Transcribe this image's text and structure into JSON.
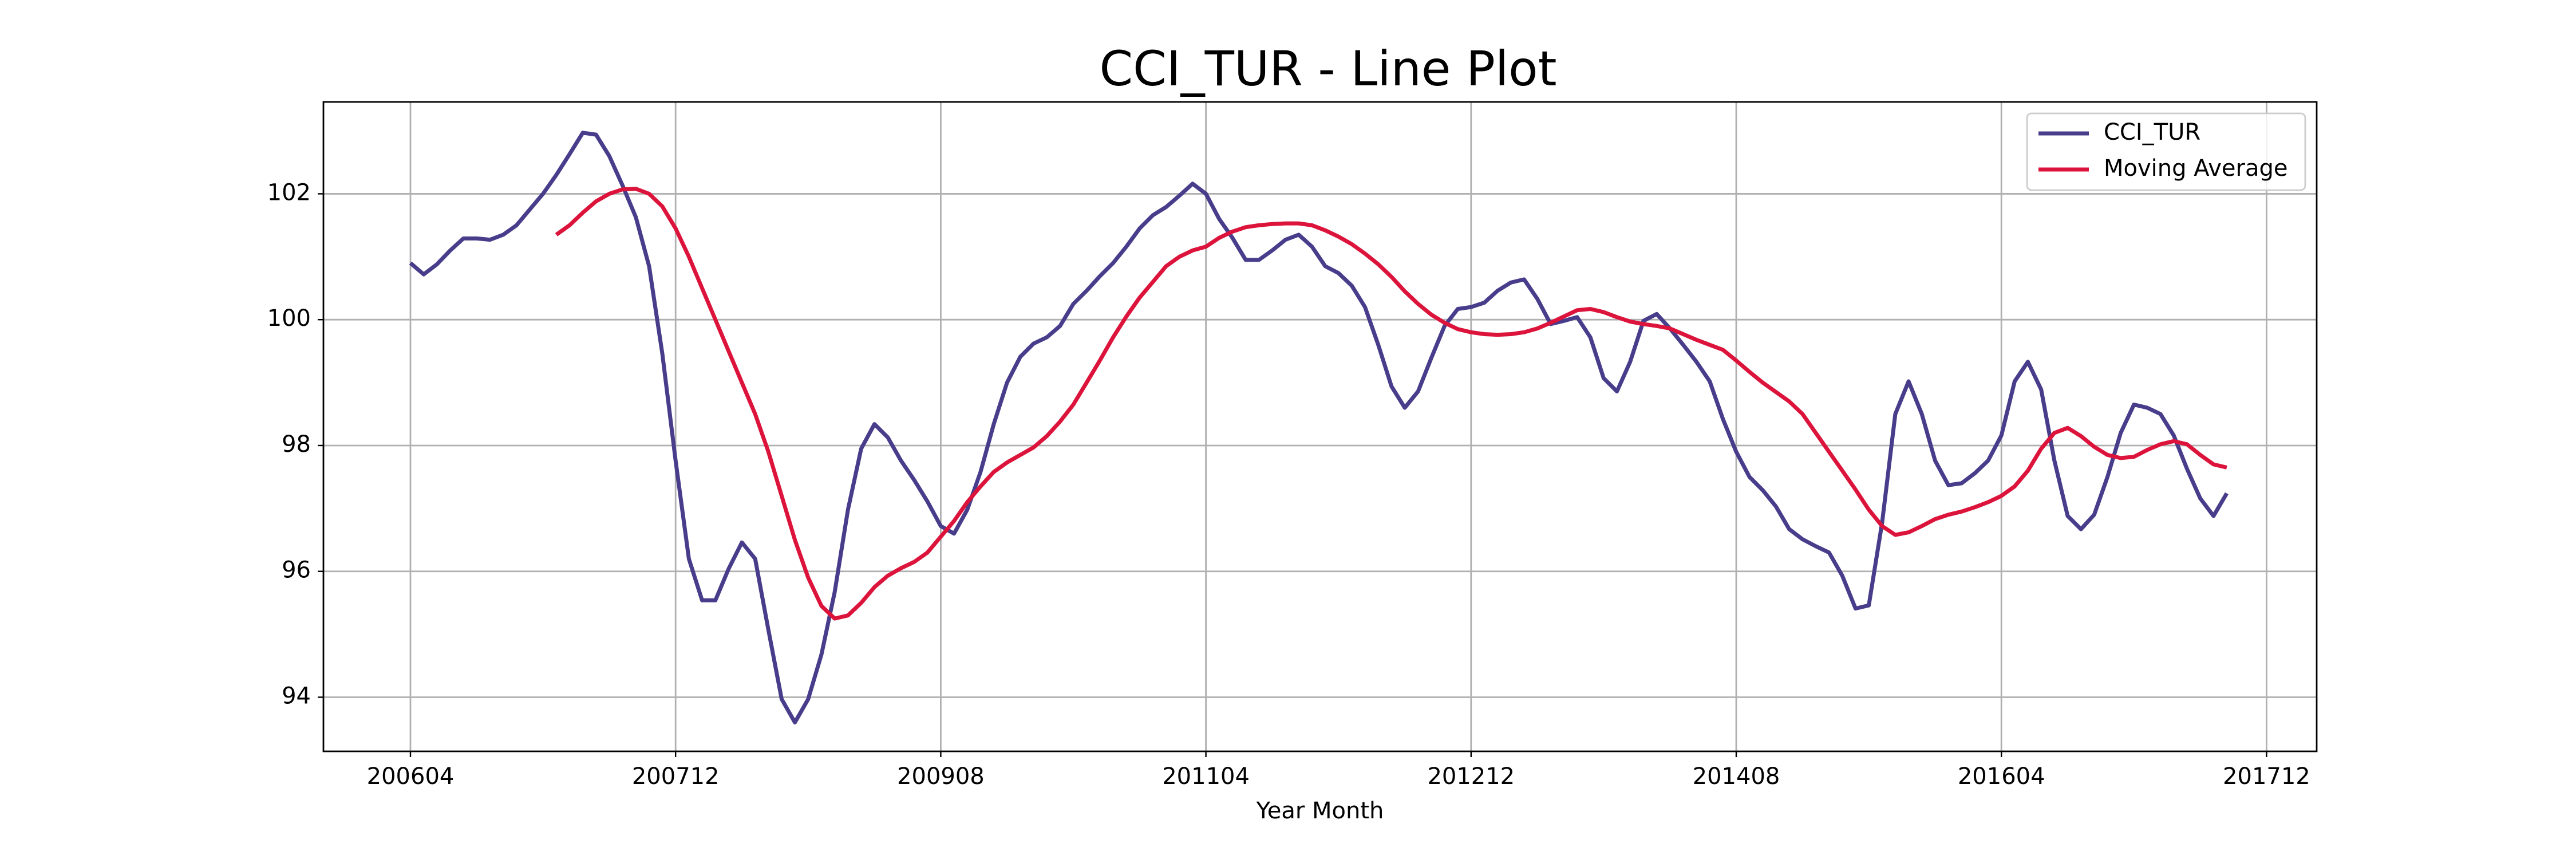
{
  "chart_data": {
    "type": "line",
    "title": "CCI_TUR - Line Plot",
    "x_label": "Year Month",
    "categories": [
      "200604",
      null,
      null,
      null,
      null,
      null,
      null,
      null,
      null,
      null,
      null,
      null,
      null,
      null,
      null,
      null,
      null,
      null,
      null,
      null,
      "200712",
      null,
      null,
      null,
      null,
      null,
      null,
      null,
      null,
      null,
      null,
      null,
      null,
      null,
      null,
      null,
      null,
      null,
      null,
      null,
      "200908",
      null,
      null,
      null,
      null,
      null,
      null,
      null,
      null,
      null,
      null,
      null,
      null,
      null,
      null,
      null,
      null,
      null,
      null,
      null,
      "201104",
      null,
      null,
      null,
      null,
      null,
      null,
      null,
      null,
      null,
      null,
      null,
      null,
      null,
      null,
      null,
      null,
      null,
      null,
      null,
      "201212",
      null,
      null,
      null,
      null,
      null,
      null,
      null,
      null,
      null,
      null,
      null,
      null,
      null,
      null,
      null,
      null,
      null,
      null,
      null,
      "201408",
      null,
      null,
      null,
      null,
      null,
      null,
      null,
      null,
      null,
      null,
      null,
      null,
      null,
      null,
      null,
      null,
      null,
      null,
      null,
      "201604",
      null,
      null,
      null,
      null,
      null,
      null,
      null,
      null,
      null,
      null,
      null,
      null,
      null,
      null,
      null,
      null,
      null,
      null,
      null,
      "201712"
    ],
    "series": [
      {
        "name": "CCI_TUR",
        "color": "#483d8b",
        "values": [
          100.9,
          100.72,
          100.88,
          101.1,
          101.29,
          101.29,
          101.27,
          101.35,
          101.5,
          101.75,
          102.0,
          102.3,
          102.63,
          102.97,
          102.94,
          102.6,
          102.13,
          101.63,
          100.85,
          99.46,
          97.76,
          96.2,
          95.54,
          95.54,
          96.04,
          96.46,
          96.2,
          95.07,
          93.97,
          93.6,
          93.97,
          94.68,
          95.67,
          96.98,
          97.95,
          98.34,
          98.13,
          97.76,
          97.45,
          97.11,
          96.72,
          96.6,
          96.98,
          97.58,
          98.34,
          99.0,
          99.41,
          99.62,
          99.72,
          99.9,
          100.25,
          100.46,
          100.69,
          100.9,
          101.16,
          101.45,
          101.66,
          101.79,
          101.97,
          102.16,
          102.0,
          101.6,
          101.3,
          100.95,
          100.95,
          101.1,
          101.27,
          101.35,
          101.16,
          100.85,
          100.74,
          100.54,
          100.2,
          99.6,
          98.94,
          98.6,
          98.86,
          99.39,
          99.9,
          100.17,
          100.2,
          100.27,
          100.46,
          100.59,
          100.64,
          100.33,
          99.93,
          99.98,
          100.04,
          99.72,
          99.07,
          98.86,
          99.33,
          99.98,
          100.09,
          99.86,
          99.6,
          99.33,
          99.02,
          98.42,
          97.9,
          97.5,
          97.29,
          97.03,
          96.67,
          96.51,
          96.4,
          96.3,
          95.93,
          95.41,
          95.46,
          96.77,
          98.5,
          99.02,
          98.5,
          97.76,
          97.37,
          97.4,
          97.56,
          97.76,
          98.16,
          99.02,
          99.33,
          98.89,
          97.76,
          96.88,
          96.67,
          96.9,
          97.5,
          98.2,
          98.65,
          98.6,
          98.5,
          98.16,
          97.63,
          97.16,
          96.88,
          97.24,
          null,
          null,
          null
        ]
      },
      {
        "name": "Moving Average",
        "color": "#dc143c",
        "values": [
          null,
          null,
          null,
          null,
          null,
          null,
          null,
          null,
          null,
          null,
          null,
          101.35,
          101.5,
          101.7,
          101.88,
          102.0,
          102.07,
          102.08,
          102.0,
          101.8,
          101.45,
          101.0,
          100.5,
          100.0,
          99.5,
          99.0,
          98.5,
          97.9,
          97.2,
          96.5,
          95.9,
          95.45,
          95.25,
          95.3,
          95.5,
          95.75,
          95.93,
          96.05,
          96.15,
          96.3,
          96.55,
          96.8,
          97.1,
          97.35,
          97.58,
          97.73,
          97.85,
          97.97,
          98.15,
          98.38,
          98.65,
          99.0,
          99.35,
          99.72,
          100.05,
          100.35,
          100.6,
          100.85,
          101.0,
          101.1,
          101.16,
          101.3,
          101.4,
          101.47,
          101.5,
          101.52,
          101.53,
          101.53,
          101.5,
          101.42,
          101.32,
          101.2,
          101.05,
          100.88,
          100.68,
          100.45,
          100.25,
          100.08,
          99.95,
          99.85,
          99.8,
          99.77,
          99.76,
          99.77,
          99.8,
          99.86,
          99.95,
          100.05,
          100.15,
          100.17,
          100.12,
          100.04,
          99.97,
          99.93,
          99.9,
          99.86,
          99.77,
          99.68,
          99.6,
          99.52,
          99.35,
          99.17,
          99.0,
          98.85,
          98.7,
          98.5,
          98.2,
          97.9,
          97.6,
          97.3,
          96.98,
          96.72,
          96.58,
          96.62,
          96.72,
          96.83,
          96.9,
          96.95,
          97.02,
          97.1,
          97.2,
          97.35,
          97.6,
          97.95,
          98.2,
          98.28,
          98.15,
          97.98,
          97.85,
          97.8,
          97.82,
          97.93,
          98.02,
          98.07,
          98.02,
          97.85,
          97.7,
          97.65,
          null,
          null,
          null
        ]
      }
    ],
    "ylim": [
      93.14,
      103.46
    ],
    "yticks": [
      94,
      96,
      98,
      100,
      102
    ],
    "grid": true,
    "legend": "upper right"
  }
}
